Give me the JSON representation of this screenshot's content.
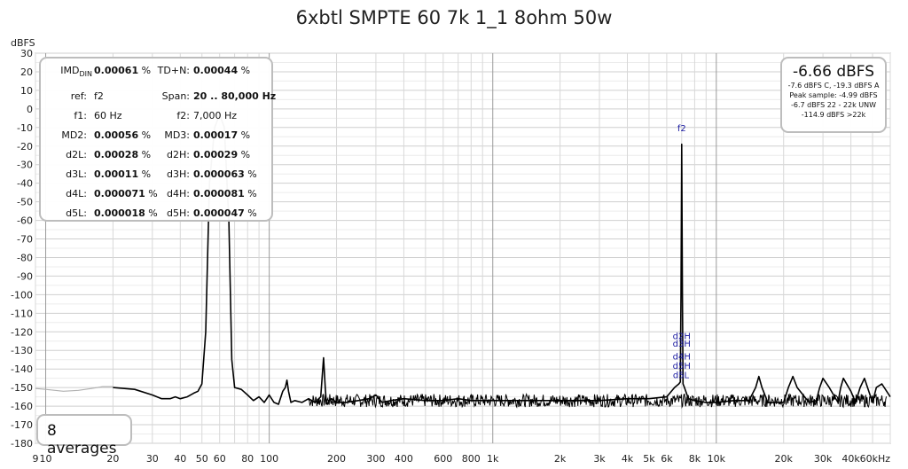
{
  "title": "6xbtl SMPTE 60 7k 1_1 8ohm 50w",
  "y_unit": "dBFS",
  "stats": {
    "rows": [
      {
        "l1": "IMD",
        "l1sub": "DIN",
        "v1": "0.00061",
        "u1": " %",
        "l2": "TD+N:",
        "v2": "0.00044",
        "u2": " %"
      },
      {
        "l1": "ref:",
        "v1": "",
        "u1": "f2",
        "l2": "Span:",
        "v2": "20 .. 80,000 Hz",
        "u2": ""
      },
      {
        "l1": "f1:",
        "v1": "",
        "u1": "60 Hz",
        "l2": "f2:",
        "v2": "",
        "u2": "7,000 Hz"
      },
      {
        "l1": "MD2:",
        "v1": "0.00056",
        "u1": " %",
        "l2": "MD3:",
        "v2": "0.00017",
        "u2": " %"
      },
      {
        "l1": "d2L:",
        "v1": "0.00028",
        "u1": " %",
        "l2": "d2H:",
        "v2": "0.00029",
        "u2": " %"
      },
      {
        "l1": "d3L:",
        "v1": "0.00011",
        "u1": " %",
        "l2": "d3H:",
        "v2": "0.000063",
        "u2": " %"
      },
      {
        "l1": "d4L:",
        "v1": "0.000071",
        "u1": " %",
        "l2": "d4H:",
        "v2": "0.000081",
        "u2": " %"
      },
      {
        "l1": "d5L:",
        "v1": "0.000018",
        "u1": " %",
        "l2": "d5H:",
        "v2": "0.000047",
        "u2": " %"
      }
    ]
  },
  "level": {
    "main": "-6.66 dBFS",
    "line1": "-7.6 dBFS C, -19.3 dBFS A",
    "line2": "Peak sample: -4.99 dBFS",
    "line3": "-6.7 dBFS 22 - 22k UNW",
    "line4": "-114.9 dBFS >22k"
  },
  "averages": "8 averages",
  "chart_data": {
    "type": "line",
    "xscale": "log",
    "xlim": [
      9,
      60000
    ],
    "ylim": [
      -180,
      30
    ],
    "grid": true,
    "xlabel": "",
    "ylabel": "dBFS",
    "x_ticks": [
      {
        "v": 9,
        "t": "9"
      },
      {
        "v": 10,
        "t": "10"
      },
      {
        "v": 20,
        "t": "20"
      },
      {
        "v": 30,
        "t": "30"
      },
      {
        "v": 40,
        "t": "40"
      },
      {
        "v": 50,
        "t": "50"
      },
      {
        "v": 60,
        "t": "60"
      },
      {
        "v": 80,
        "t": "80"
      },
      {
        "v": 100,
        "t": "100"
      },
      {
        "v": 200,
        "t": "200"
      },
      {
        "v": 300,
        "t": "300"
      },
      {
        "v": 400,
        "t": "400"
      },
      {
        "v": 600,
        "t": "600"
      },
      {
        "v": 800,
        "t": "800"
      },
      {
        "v": 1000,
        "t": "1k"
      },
      {
        "v": 2000,
        "t": "2k"
      },
      {
        "v": 3000,
        "t": "3k"
      },
      {
        "v": 4000,
        "t": "4k"
      },
      {
        "v": 5000,
        "t": "5k"
      },
      {
        "v": 6000,
        "t": "6k"
      },
      {
        "v": 8000,
        "t": "8k"
      },
      {
        "v": 10000,
        "t": "10k"
      },
      {
        "v": 20000,
        "t": "20k"
      },
      {
        "v": 30000,
        "t": "30k"
      },
      {
        "v": 40000,
        "t": "40k"
      },
      {
        "v": 60000,
        "t": "60kHz"
      }
    ],
    "y_ticks": [
      30,
      20,
      10,
      0,
      -10,
      -20,
      -30,
      -40,
      -50,
      -60,
      -70,
      -80,
      -90,
      -100,
      -110,
      -120,
      -130,
      -140,
      -150,
      -160,
      -170,
      -180
    ],
    "series": [
      {
        "color": "#b0b0b0",
        "x": [
          9,
          10,
          12,
          14,
          16,
          18,
          20
        ],
        "y": [
          -150.5,
          -151,
          -152,
          -151.5,
          -150.5,
          -149.5,
          -149.5
        ]
      },
      {
        "color": "#000000",
        "x": [
          20,
          25,
          30,
          33,
          36,
          38,
          40,
          43,
          46,
          48,
          50,
          52,
          54,
          57,
          60,
          63,
          66,
          68,
          70,
          75,
          80,
          85,
          90,
          95,
          100,
          105,
          110,
          115,
          118,
          120,
          122,
          125,
          130,
          140,
          150,
          160,
          170,
          175,
          178,
          180,
          182,
          185,
          190,
          200,
          220,
          250,
          280,
          300,
          320,
          350,
          400,
          500,
          600,
          700,
          800,
          1000,
          1500,
          2000,
          3000,
          4000,
          5000,
          6000,
          6500,
          6800,
          6900,
          6950,
          7000,
          7050,
          7100,
          7200,
          7500,
          8000,
          9000,
          10000,
          12000,
          14000,
          15000,
          15500,
          16000,
          17000,
          20000,
          21000,
          22000,
          23000,
          26000,
          28000,
          29000,
          30000,
          32000,
          35000,
          36000,
          37000,
          40000,
          42000,
          44000,
          46000,
          50000,
          52000,
          55000,
          60000
        ],
        "y": [
          -150,
          -151,
          -154,
          -156,
          -156,
          -155,
          -156,
          -155,
          -153,
          -152,
          -148,
          -120,
          -40,
          -10,
          -3,
          -10,
          -60,
          -135,
          -150,
          -151,
          -154,
          -157,
          -155,
          -158,
          -154,
          -158,
          -159,
          -152,
          -150,
          -146,
          -152,
          -158,
          -157,
          -158,
          -156,
          -158,
          -155,
          -134,
          -150,
          -158,
          -159,
          -157,
          -156,
          -158,
          -158,
          -157,
          -156,
          -154,
          -158,
          -157,
          -156,
          -157,
          -157,
          -156,
          -157,
          -157,
          -157,
          -157,
          -157,
          -156,
          -156,
          -155,
          -150,
          -148,
          -147,
          -100,
          -19,
          -100,
          -148,
          -150,
          -156,
          -157,
          -158,
          -158,
          -157,
          -157,
          -150,
          -144,
          -150,
          -158,
          -158,
          -150,
          -144,
          -150,
          -158,
          -157,
          -150,
          -145,
          -150,
          -158,
          -150,
          -145,
          -152,
          -158,
          -150,
          -145,
          -158,
          -150,
          -148,
          -155
        ]
      }
    ],
    "annotations": [
      {
        "text": "f2",
        "x": 7000,
        "y": -12
      },
      {
        "text": "d2H",
        "x": 7000,
        "y": -124
      },
      {
        "text": "d3H",
        "x": 7000,
        "y": -128
      },
      {
        "text": "d4H",
        "x": 7000,
        "y": -135
      },
      {
        "text": "d5H",
        "x": 7000,
        "y": -140
      },
      {
        "text": "d5L",
        "x": 6950,
        "y": -145
      }
    ]
  }
}
